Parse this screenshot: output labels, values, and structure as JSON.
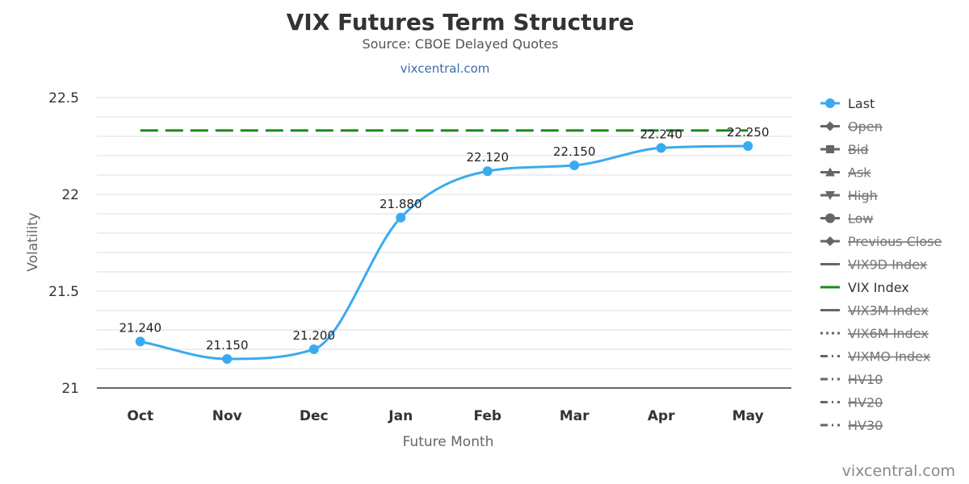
{
  "chart_data": {
    "type": "line",
    "title": "VIX Futures Term Structure",
    "subtitle": "Source: CBOE Delayed Quotes",
    "link": "vixcentral.com",
    "xlabel": "Future Month",
    "ylabel": "Volatility",
    "categories": [
      "Oct",
      "Nov",
      "Dec",
      "Jan",
      "Feb",
      "Mar",
      "Apr",
      "May"
    ],
    "ylim": [
      21,
      22.5
    ],
    "yticks": [
      "21",
      "21.5",
      "22",
      "22.5"
    ],
    "grid": true,
    "legend_placement": "right",
    "series": [
      {
        "name": "Last",
        "values": [
          21.24,
          21.15,
          21.2,
          21.88,
          22.12,
          22.15,
          22.24,
          22.25
        ],
        "labels": [
          "21.240",
          "21.150",
          "21.200",
          "21.880",
          "22.120",
          "22.150",
          "22.240",
          "22.250"
        ],
        "color": "#3aaaf0"
      },
      {
        "name": "VIX Index",
        "values": [
          22.33,
          22.33,
          22.33,
          22.33,
          22.33,
          22.33,
          22.33,
          22.33
        ],
        "color": "#1a8a1a",
        "style": "dashed"
      }
    ],
    "legend": [
      {
        "name": "Last",
        "symbol": "circle",
        "line": "solid",
        "color": "#3aaaf0",
        "active": true
      },
      {
        "name": "Open",
        "symbol": "diamond",
        "line": "solid",
        "color": "#666666",
        "active": false
      },
      {
        "name": "Bid",
        "symbol": "square",
        "line": "solid",
        "color": "#666666",
        "active": false
      },
      {
        "name": "Ask",
        "symbol": "triangle",
        "line": "solid",
        "color": "#666666",
        "active": false
      },
      {
        "name": "High",
        "symbol": "triangle-down",
        "line": "solid",
        "color": "#666666",
        "active": false
      },
      {
        "name": "Low",
        "symbol": "circle",
        "line": "solid",
        "color": "#666666",
        "active": false
      },
      {
        "name": "Previous Close",
        "symbol": "diamond",
        "line": "solid",
        "color": "#666666",
        "active": false
      },
      {
        "name": "VIX9D Index",
        "symbol": "none",
        "line": "solid",
        "color": "#666666",
        "active": false
      },
      {
        "name": "VIX Index",
        "symbol": "none",
        "line": "solid",
        "color": "#1a8a1a",
        "active": true
      },
      {
        "name": "VIX3M Index",
        "symbol": "none",
        "line": "solid",
        "color": "#666666",
        "active": false
      },
      {
        "name": "VIX6M Index",
        "symbol": "none",
        "line": "dotted",
        "color": "#666666",
        "active": false
      },
      {
        "name": "VIXMO Index",
        "symbol": "none",
        "line": "dashdot",
        "color": "#666666",
        "active": false
      },
      {
        "name": "HV10",
        "symbol": "none",
        "line": "dashdot",
        "color": "#666666",
        "active": false
      },
      {
        "name": "HV20",
        "symbol": "none",
        "line": "dashdot",
        "color": "#666666",
        "active": false
      },
      {
        "name": "HV30",
        "symbol": "none",
        "line": "dashdot",
        "color": "#666666",
        "active": false
      }
    ]
  },
  "credit": "vixcentral.com"
}
